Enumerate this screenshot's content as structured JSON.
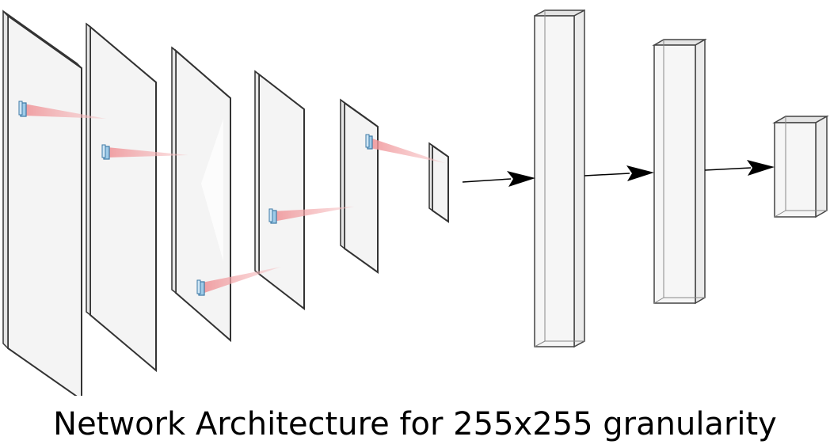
{
  "diagram": {
    "caption": "Network Architecture for 255x255 granularity",
    "conv_layers": [
      {
        "name": "conv-layer-1"
      },
      {
        "name": "conv-layer-2"
      },
      {
        "name": "conv-layer-3"
      },
      {
        "name": "conv-layer-4"
      },
      {
        "name": "conv-layer-5"
      },
      {
        "name": "conv-layer-6"
      }
    ],
    "fc_layers": [
      {
        "name": "fc-layer-1"
      },
      {
        "name": "fc-layer-2"
      },
      {
        "name": "fc-layer-3"
      }
    ],
    "icons": {
      "kernel": "kernel-icon",
      "projection": "receptive-field-projection",
      "arrow": "arrow-icon"
    },
    "colors": {
      "plane_fill": "#f3f3f3",
      "plane_stroke": "#333333",
      "kernel_fill": "#a9d3ee",
      "kernel_stroke": "#4a86b0",
      "projection_fill": "#f2a8ab",
      "arrow": "#000000",
      "text": "#000000"
    }
  }
}
